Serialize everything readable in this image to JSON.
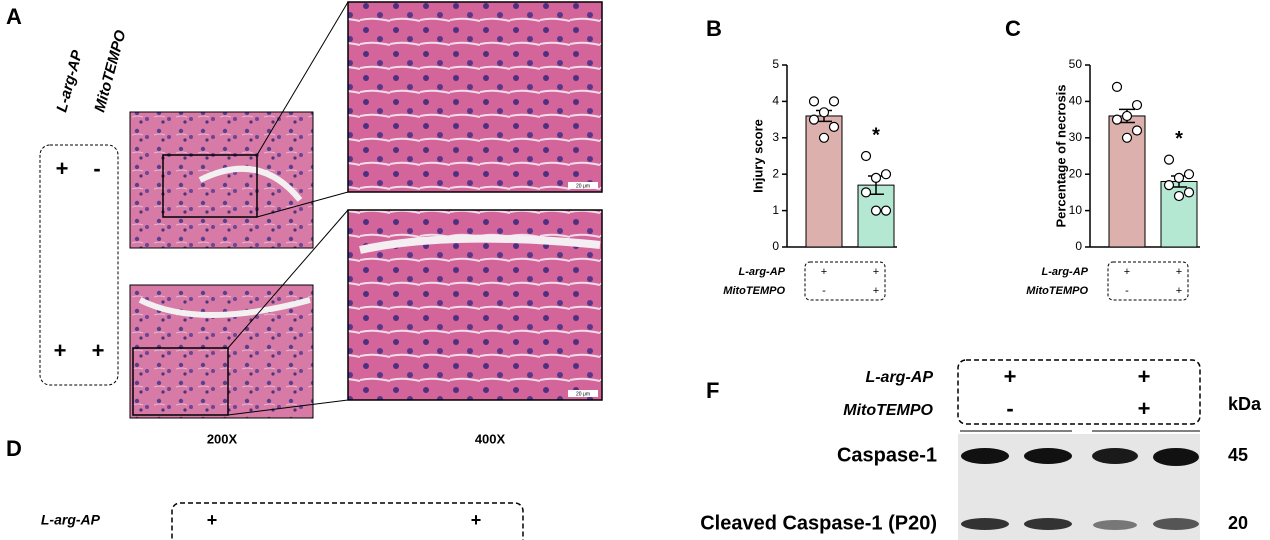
{
  "panel_a": {
    "letter": "A",
    "treatments": [
      {
        "label": "L-arg-AP"
      },
      {
        "label": "MitoTEMPO"
      }
    ],
    "rows": [
      [
        "+",
        "-"
      ],
      [
        "+",
        "+"
      ]
    ],
    "magnifications": [
      "200X",
      "400X"
    ],
    "scale_bar": "20 μm"
  },
  "chart_data": [
    {
      "type": "bar",
      "letter": "B",
      "ylabel": "Injury score",
      "values": [
        3.6,
        1.7
      ],
      "errors": [
        0.15,
        0.25
      ],
      "points": [
        [
          4.0,
          4.0,
          3.7,
          3.5,
          3.3,
          3.0
        ],
        [
          2.5,
          2.0,
          1.9,
          1.5,
          1.0,
          1.0
        ]
      ],
      "colors": [
        "#dbb0ad",
        "#b5e8d3"
      ],
      "ylim": [
        0,
        5
      ],
      "yticks": [
        0,
        1,
        2,
        3,
        4,
        5
      ],
      "annotation": "*",
      "treatments": [
        {
          "label": "L-arg-AP",
          "signs": [
            "+",
            "+"
          ]
        },
        {
          "label": "MitoTEMPO",
          "signs": [
            "-",
            "+"
          ]
        }
      ]
    },
    {
      "type": "bar",
      "letter": "C",
      "ylabel": "Percentage of necrosis",
      "values": [
        36,
        18
      ],
      "errors": [
        1.8,
        1.5
      ],
      "points": [
        [
          44,
          39,
          36,
          35,
          32,
          30
        ],
        [
          24,
          20,
          19,
          17,
          15,
          14
        ]
      ],
      "colors": [
        "#dbb0ad",
        "#b5e8d3"
      ],
      "ylim": [
        0,
        50
      ],
      "yticks": [
        0,
        10,
        20,
        30,
        40,
        50
      ],
      "annotation": "*",
      "treatments": [
        {
          "label": "L-arg-AP",
          "signs": [
            "+",
            "+"
          ]
        },
        {
          "label": "MitoTEMPO",
          "signs": [
            "-",
            "+"
          ]
        }
      ]
    }
  ],
  "panel_d": {
    "letter": "D",
    "treatment": "L-arg-AP",
    "signs": [
      "+",
      "+"
    ]
  },
  "panel_f": {
    "letter": "F",
    "treatments": [
      {
        "label": "L-arg-AP",
        "signs": [
          "+",
          "+"
        ]
      },
      {
        "label": "MitoTEMPO",
        "signs": [
          "-",
          "+"
        ]
      }
    ],
    "unit": "kDa",
    "bands": [
      {
        "name": "Caspase-1",
        "kda": "45"
      },
      {
        "name": "Cleaved Caspase-1 (P20)",
        "kda": "20"
      }
    ]
  }
}
